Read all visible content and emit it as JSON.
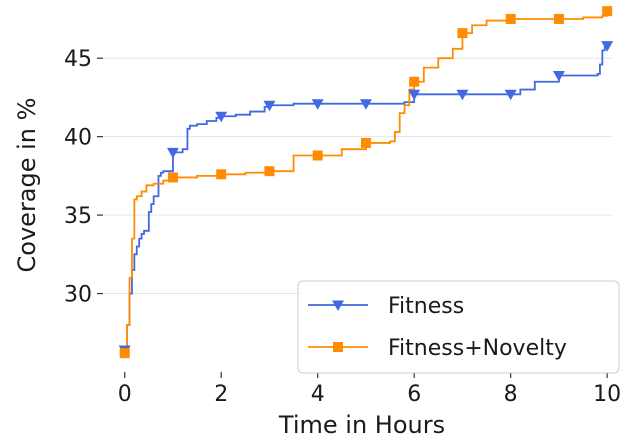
{
  "chart_data": {
    "type": "line",
    "title": "",
    "xlabel": "Time in Hours",
    "ylabel": "Coverage in %",
    "xlim": [
      -0.45,
      10.1
    ],
    "ylim": [
      25.0,
      48.2
    ],
    "xticks": [
      0,
      2,
      4,
      6,
      8,
      10
    ],
    "yticks": [
      30,
      35,
      40,
      45
    ],
    "grid": "horizontal",
    "legend": {
      "placement": "bottom-right"
    },
    "series": [
      {
        "name": "Fitness",
        "color": "#4169e1",
        "marker": "triangle-down",
        "x": [
          0,
          0.05,
          0.1,
          0.15,
          0.2,
          0.25,
          0.3,
          0.35,
          0.4,
          0.5,
          0.55,
          0.6,
          0.7,
          0.75,
          0.8,
          1.0,
          1.2,
          1.3,
          1.35,
          1.5,
          1.7,
          1.9,
          2.0,
          2.3,
          2.6,
          2.9,
          3.0,
          3.5,
          4.0,
          5.0,
          5.8,
          6.0,
          6.5,
          7.0,
          7.5,
          8.0,
          8.2,
          8.5,
          9.0,
          9.8,
          9.85,
          9.9,
          9.95,
          10.0
        ],
        "y": [
          26.5,
          28.0,
          30.0,
          31.5,
          32.5,
          33.0,
          33.5,
          33.8,
          34.0,
          35.2,
          35.7,
          36.2,
          37.5,
          37.7,
          37.8,
          39.0,
          39.2,
          40.5,
          40.7,
          40.8,
          41.0,
          41.2,
          41.3,
          41.4,
          41.6,
          41.9,
          42.0,
          42.1,
          42.1,
          42.1,
          42.2,
          42.7,
          42.7,
          42.7,
          42.7,
          42.7,
          43.0,
          43.5,
          43.9,
          44.0,
          44.6,
          45.5,
          45.7,
          45.8
        ],
        "marker_x": [
          0,
          1,
          2,
          3,
          4,
          5,
          6,
          7,
          8,
          9,
          10
        ],
        "marker_y": [
          26.4,
          39.0,
          41.3,
          42.0,
          42.1,
          42.1,
          42.7,
          42.7,
          42.7,
          43.9,
          45.8
        ]
      },
      {
        "name": "Fitness+Novelty",
        "color": "#ff8c00",
        "marker": "square",
        "x": [
          0,
          0.05,
          0.1,
          0.15,
          0.2,
          0.25,
          0.35,
          0.45,
          0.6,
          0.8,
          1.0,
          1.5,
          2.0,
          2.5,
          3.0,
          3.5,
          4.0,
          4.5,
          5.0,
          5.5,
          5.6,
          5.7,
          5.8,
          5.9,
          6.0,
          6.2,
          6.5,
          6.8,
          7.0,
          7.2,
          7.5,
          8.0,
          9.0,
          9.5,
          9.9,
          10.0
        ],
        "y": [
          26.2,
          28.0,
          31.0,
          33.5,
          36.0,
          36.2,
          36.5,
          36.9,
          37.0,
          37.2,
          37.4,
          37.5,
          37.6,
          37.7,
          37.8,
          38.8,
          38.8,
          39.2,
          39.6,
          39.7,
          40.3,
          41.5,
          42.0,
          43.0,
          43.5,
          44.4,
          45.0,
          45.6,
          46.6,
          47.1,
          47.4,
          47.5,
          47.5,
          47.6,
          47.7,
          48.0
        ],
        "marker_x": [
          0,
          1,
          2,
          3,
          4,
          5,
          6,
          7,
          8,
          9,
          10
        ],
        "marker_y": [
          26.2,
          37.4,
          37.6,
          37.8,
          38.8,
          39.6,
          43.5,
          46.6,
          47.5,
          47.5,
          48.0
        ]
      }
    ]
  }
}
